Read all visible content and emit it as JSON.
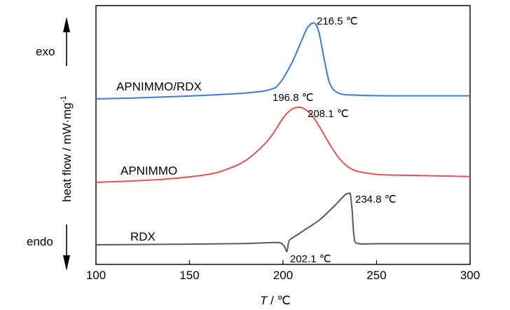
{
  "chart_data": {
    "type": "line",
    "xlabel_italic": "T",
    "xlabel_rest": " / ℃",
    "ylabel": "heat flow / mW·mg",
    "ylabel_sup": "-1",
    "xlim": [
      100,
      300
    ],
    "xticks": [
      100,
      150,
      200,
      250,
      300
    ],
    "grid": false,
    "exo_label": "exo",
    "endo_label": "endo",
    "series": [
      {
        "name": "APNIMMO/RDX",
        "color": "#3b7bd9",
        "x": [
          100,
          120,
          140,
          160,
          180,
          190,
          195,
          197,
          200,
          205,
          210,
          213,
          216.5,
          219,
          222,
          225,
          230,
          240,
          260,
          280,
          300
        ],
        "y": [
          0.0,
          0.15,
          0.35,
          0.6,
          0.95,
          1.3,
          1.7,
          2.1,
          3.3,
          6.0,
          9.5,
          11.5,
          12.3,
          11.0,
          6.5,
          2.5,
          0.9,
          0.6,
          0.5,
          0.5,
          0.5
        ]
      },
      {
        "name": "APNIMMO",
        "color": "#e8514f",
        "x": [
          100,
          120,
          140,
          160,
          170,
          180,
          190,
          195,
          200,
          204,
          208.1,
          212,
          216,
          220,
          225,
          230,
          235,
          240,
          250,
          260,
          280,
          300
        ],
        "y": [
          0.0,
          0.2,
          0.5,
          1.1,
          1.8,
          3.0,
          5.2,
          6.8,
          8.8,
          9.9,
          10.3,
          10.0,
          9.0,
          7.4,
          5.2,
          3.3,
          2.1,
          1.5,
          1.1,
          1.0,
          0.9,
          0.8
        ]
      },
      {
        "name": "RDX",
        "color": "#5a5a5a",
        "x": [
          100,
          140,
          180,
          195,
          199,
          201,
          202.1,
          203,
          204,
          207,
          212,
          220,
          228,
          233,
          234.8,
          236,
          237,
          238,
          240,
          250,
          270,
          300
        ],
        "y": [
          0.0,
          0.1,
          0.25,
          0.45,
          0.3,
          -0.5,
          -1.3,
          0.5,
          1.1,
          1.8,
          3.0,
          5.0,
          7.8,
          9.7,
          10.0,
          9.8,
          6.5,
          1.5,
          0.25,
          0.2,
          0.2,
          0.2
        ]
      }
    ],
    "annotations": [
      {
        "text": "216.5 ℃"
      },
      {
        "text": "196.8 ℃"
      },
      {
        "text": "208.1 ℃"
      },
      {
        "text": "234.8 ℃"
      },
      {
        "text": "202.1 ℃"
      }
    ]
  }
}
